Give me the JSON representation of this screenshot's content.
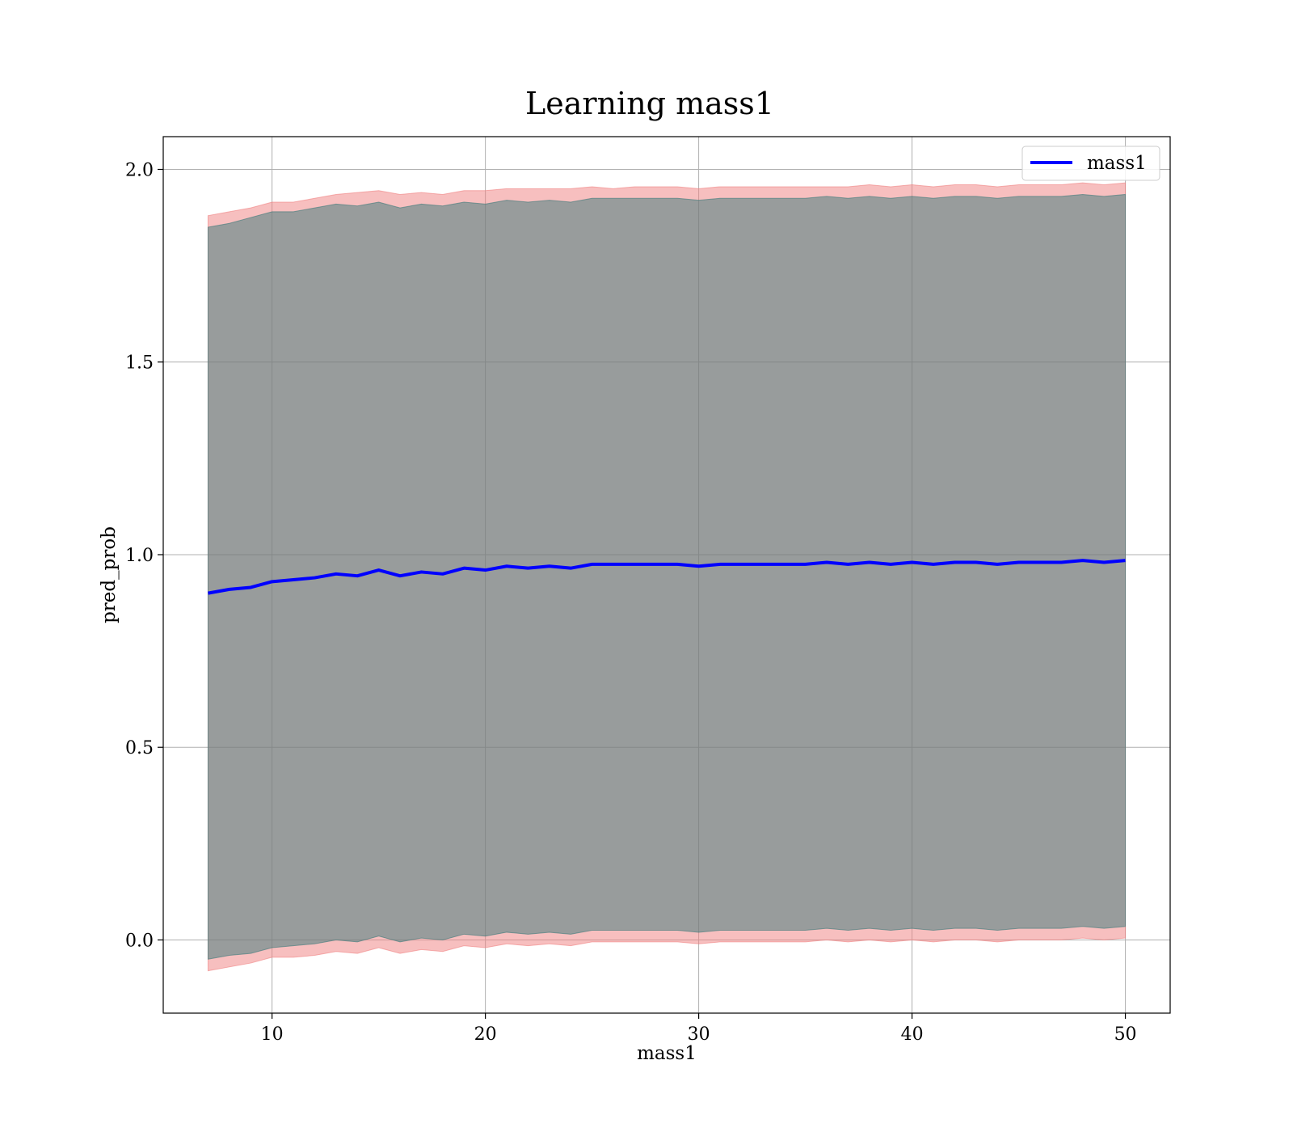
{
  "chart_data": {
    "type": "line",
    "title": "Learning mass1",
    "xlabel": "mass1",
    "ylabel": "pred_prob",
    "xlim": [
      4.9,
      52.1
    ],
    "ylim": [
      -0.19,
      2.085
    ],
    "xticks": [
      "10",
      "20",
      "30",
      "40",
      "50"
    ],
    "yticks": [
      "0.0",
      "0.5",
      "1.0",
      "1.5",
      "2.0"
    ],
    "xtick_values": [
      10,
      20,
      30,
      40,
      50
    ],
    "ytick_values": [
      0.0,
      0.5,
      1.0,
      1.5,
      2.0
    ],
    "grid": true,
    "legend_position": "top-right",
    "legend": [
      "mass1"
    ],
    "series": [
      {
        "name": "mass1",
        "color": "#0000ff",
        "x": [
          7,
          8,
          9,
          10,
          11,
          12,
          13,
          14,
          15,
          16,
          17,
          18,
          19,
          20,
          21,
          22,
          23,
          24,
          25,
          26,
          27,
          28,
          29,
          30,
          31,
          32,
          33,
          34,
          35,
          36,
          37,
          38,
          39,
          40,
          41,
          42,
          43,
          44,
          45,
          46,
          47,
          48,
          49,
          50
        ],
        "values": [
          0.9,
          0.91,
          0.915,
          0.93,
          0.935,
          0.94,
          0.95,
          0.945,
          0.96,
          0.945,
          0.955,
          0.95,
          0.965,
          0.96,
          0.97,
          0.965,
          0.97,
          0.965,
          0.975,
          0.975,
          0.975,
          0.975,
          0.975,
          0.97,
          0.975,
          0.975,
          0.975,
          0.975,
          0.975,
          0.98,
          0.975,
          0.98,
          0.975,
          0.98,
          0.975,
          0.98,
          0.98,
          0.975,
          0.98,
          0.98,
          0.98,
          0.985,
          0.98,
          0.985
        ]
      }
    ],
    "bands": [
      {
        "color": "#f08080",
        "upper": [
          1.88,
          1.89,
          1.9,
          1.915,
          1.915,
          1.925,
          1.935,
          1.94,
          1.945,
          1.935,
          1.94,
          1.935,
          1.945,
          1.945,
          1.95,
          1.95,
          1.95,
          1.95,
          1.955,
          1.95,
          1.955,
          1.955,
          1.955,
          1.95,
          1.955,
          1.955,
          1.955,
          1.955,
          1.955,
          1.955,
          1.955,
          1.96,
          1.955,
          1.96,
          1.955,
          1.96,
          1.96,
          1.955,
          1.96,
          1.96,
          1.96,
          1.965,
          1.96,
          1.965
        ],
        "lower": [
          -0.08,
          -0.07,
          -0.06,
          -0.045,
          -0.045,
          -0.04,
          -0.03,
          -0.035,
          -0.02,
          -0.035,
          -0.025,
          -0.03,
          -0.015,
          -0.02,
          -0.01,
          -0.015,
          -0.01,
          -0.015,
          -0.005,
          -0.005,
          -0.005,
          -0.005,
          -0.005,
          -0.01,
          -0.005,
          -0.005,
          -0.005,
          -0.005,
          -0.005,
          0.0,
          -0.005,
          0.0,
          -0.005,
          0.0,
          -0.005,
          0.0,
          0.0,
          -0.005,
          0.0,
          0.0,
          0.0,
          0.005,
          0.0,
          0.005
        ]
      },
      {
        "color": "#3a7a7a",
        "upper": [
          1.85,
          1.86,
          1.875,
          1.89,
          1.89,
          1.9,
          1.91,
          1.905,
          1.915,
          1.9,
          1.91,
          1.905,
          1.915,
          1.91,
          1.92,
          1.915,
          1.92,
          1.915,
          1.925,
          1.925,
          1.925,
          1.925,
          1.925,
          1.92,
          1.925,
          1.925,
          1.925,
          1.925,
          1.925,
          1.93,
          1.925,
          1.93,
          1.925,
          1.93,
          1.925,
          1.93,
          1.93,
          1.925,
          1.93,
          1.93,
          1.93,
          1.935,
          1.93,
          1.935
        ],
        "lower": [
          -0.05,
          -0.04,
          -0.035,
          -0.02,
          -0.015,
          -0.01,
          0.0,
          -0.005,
          0.01,
          -0.005,
          0.005,
          0.0,
          0.015,
          0.01,
          0.02,
          0.015,
          0.02,
          0.015,
          0.025,
          0.025,
          0.025,
          0.025,
          0.025,
          0.02,
          0.025,
          0.025,
          0.025,
          0.025,
          0.025,
          0.03,
          0.025,
          0.03,
          0.025,
          0.03,
          0.025,
          0.03,
          0.03,
          0.025,
          0.03,
          0.03,
          0.03,
          0.035,
          0.03,
          0.035
        ]
      }
    ]
  }
}
